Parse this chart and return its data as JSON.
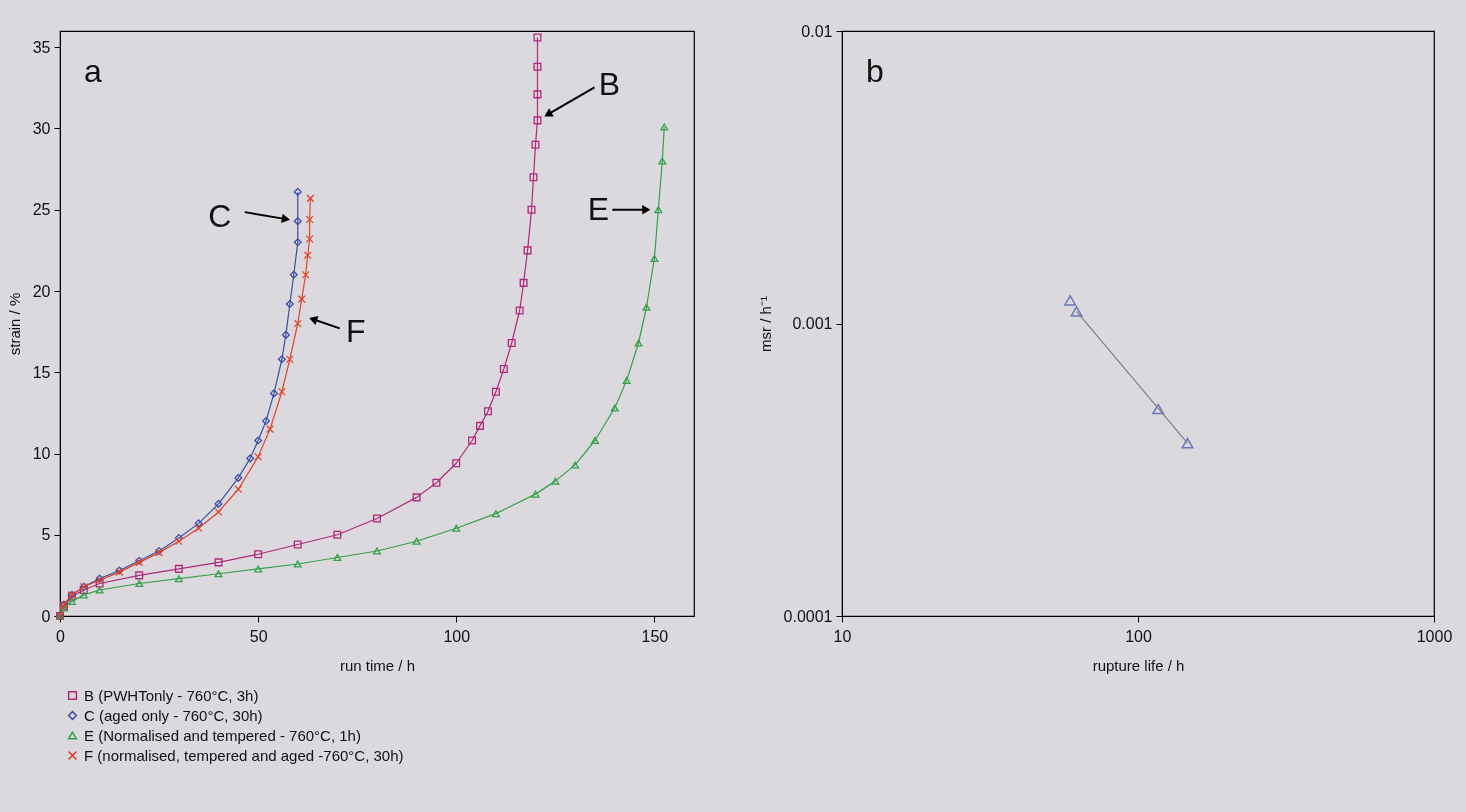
{
  "chart_data": [
    {
      "type": "line",
      "xlabel": "run time / h",
      "ylabel": "strain / %",
      "xlim": [
        0,
        160
      ],
      "xticks": [
        0,
        50,
        100,
        150
      ],
      "ylim": [
        0,
        36
      ],
      "yticks": [
        0,
        5,
        10,
        15,
        20,
        25,
        30,
        35
      ],
      "legend": "bottom left",
      "series": [
        {
          "name": "B (PWHTonly - 760°C, 3h)",
          "color": "#b0287a",
          "marker": "square",
          "x": [
            0,
            1,
            3,
            6,
            10,
            20,
            30,
            40,
            50,
            60,
            70,
            80,
            90,
            95,
            100,
            104,
            106,
            108,
            110,
            112,
            114,
            116,
            117,
            118,
            119,
            119.5,
            120,
            120.5,
            120.5,
            120.5,
            120.5
          ],
          "values": [
            0,
            0.6,
            1.2,
            1.6,
            2.0,
            2.5,
            2.9,
            3.3,
            3.8,
            4.4,
            5.0,
            6.0,
            7.3,
            8.2,
            9.4,
            10.8,
            11.7,
            12.6,
            13.8,
            15.2,
            16.8,
            18.8,
            20.5,
            22.5,
            25,
            27,
            29,
            30.5,
            32.1,
            33.8,
            35.6
          ]
        },
        {
          "name": "C (aged only - 760°C, 30h)",
          "color": "#3b4fa8",
          "marker": "diamond",
          "x": [
            0,
            1,
            3,
            6,
            10,
            15,
            20,
            25,
            30,
            35,
            40,
            45,
            48,
            50,
            52,
            54,
            56,
            57,
            58,
            59,
            60,
            60,
            60
          ],
          "values": [
            0,
            0.7,
            1.3,
            1.8,
            2.3,
            2.8,
            3.4,
            4.0,
            4.8,
            5.7,
            6.9,
            8.5,
            9.7,
            10.8,
            12,
            13.7,
            15.8,
            17.3,
            19.2,
            21,
            23,
            24.3,
            26.1
          ]
        },
        {
          "name": "E (Normalised and tempered - 760°C, 1h)",
          "color": "#33a04a",
          "marker": "triangle",
          "x": [
            0,
            1,
            3,
            6,
            10,
            20,
            30,
            40,
            50,
            60,
            70,
            80,
            90,
            100,
            110,
            120,
            125,
            130,
            135,
            140,
            143,
            146,
            148,
            150,
            151,
            152,
            152.5
          ],
          "values": [
            0,
            0.5,
            0.9,
            1.3,
            1.6,
            2.0,
            2.3,
            2.6,
            2.9,
            3.2,
            3.6,
            4.0,
            4.6,
            5.4,
            6.3,
            7.5,
            8.3,
            9.3,
            10.8,
            12.8,
            14.5,
            16.8,
            19,
            22,
            25,
            28,
            30.1
          ]
        },
        {
          "name": "F (normalised, tempered and aged -760°C, 30h)",
          "color": "#e0442a",
          "marker": "cross",
          "x": [
            0,
            1,
            3,
            6,
            10,
            15,
            20,
            25,
            30,
            35,
            40,
            45,
            50,
            53,
            56,
            58,
            60,
            61,
            62,
            62.5,
            63,
            63,
            63.2
          ],
          "values": [
            0,
            0.7,
            1.3,
            1.8,
            2.2,
            2.7,
            3.3,
            3.9,
            4.6,
            5.4,
            6.4,
            7.8,
            9.8,
            11.5,
            13.8,
            15.8,
            18,
            19.5,
            21,
            22.2,
            23.2,
            24.4,
            25.7
          ]
        }
      ],
      "annotations": [
        "a",
        {
          "text": "C",
          "x": 60,
          "y": 24.3
        },
        {
          "text": "F",
          "x": 61,
          "y": 18.5
        },
        {
          "text": "B",
          "x": 120.5,
          "y": 30.5
        },
        {
          "text": "E",
          "x": 151,
          "y": 25
        }
      ]
    },
    {
      "type": "scatter",
      "xlabel": "rupture life / h",
      "ylabel": "msr / h⁻¹",
      "log": "xy",
      "xlim": [
        10,
        1000
      ],
      "xticks": [
        10,
        100,
        1000
      ],
      "ylim": [
        0.0001,
        0.01
      ],
      "yticks": [
        0.0001,
        0.001,
        0.01
      ],
      "marker": "triangle",
      "series": [
        {
          "color": "#3b4fa8",
          "x": [
            59,
            62,
            117,
            147
          ],
          "values": [
            0.0012,
            0.0011,
            0.00051,
            0.00039
          ]
        },
        {
          "type": "line",
          "color": "#808080",
          "marker": "none",
          "x": [
            62,
            147
          ],
          "values": [
            0.0011,
            0.00039
          ]
        }
      ],
      "annotations": [
        "b"
      ]
    }
  ]
}
